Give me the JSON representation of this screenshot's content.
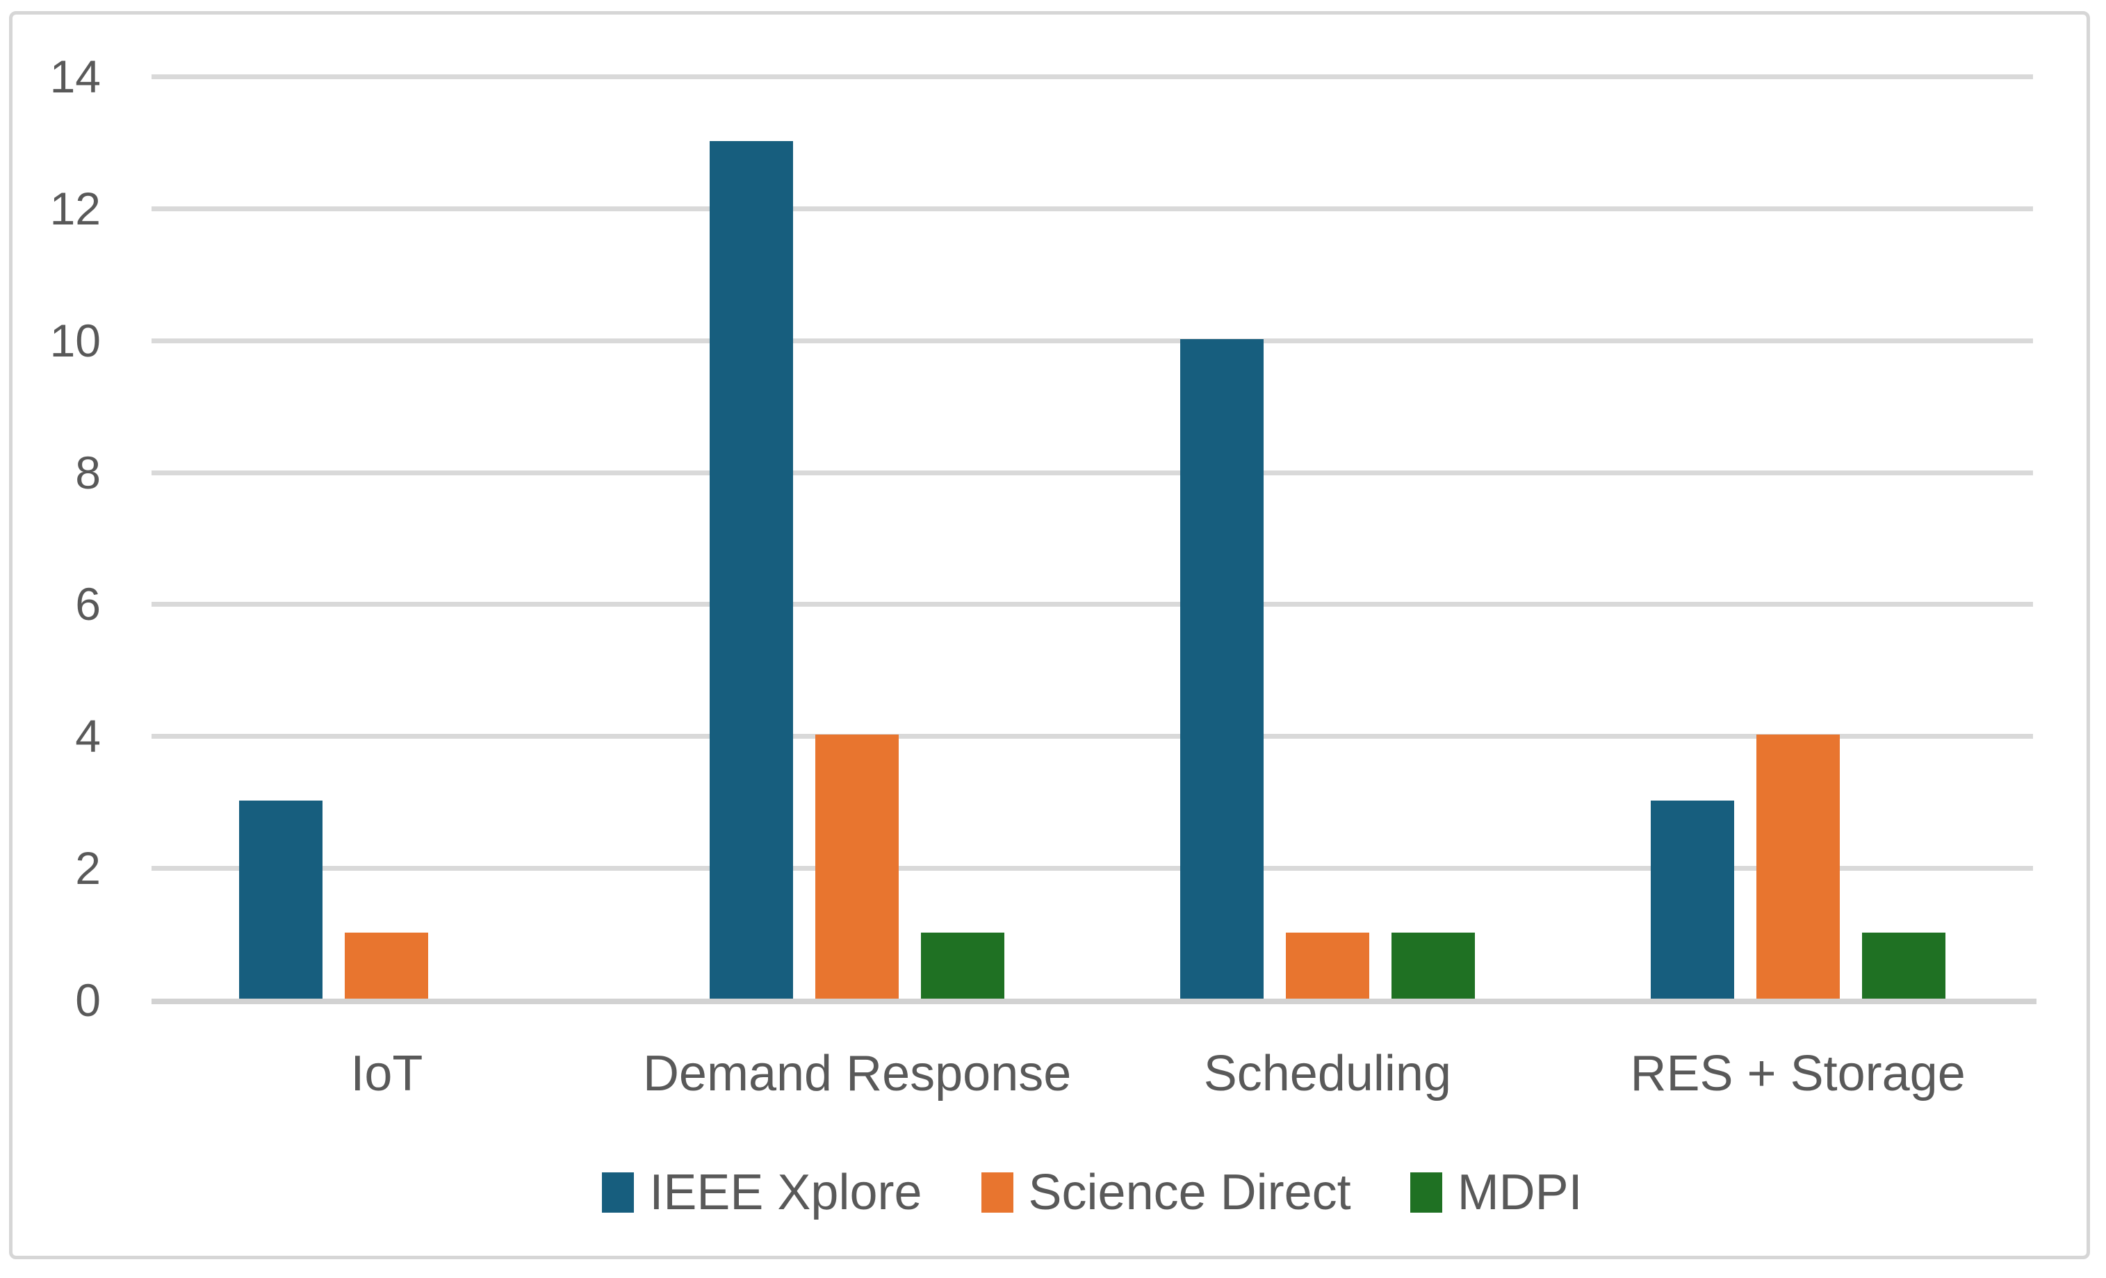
{
  "chart_data": {
    "type": "bar",
    "title": "",
    "xlabel": "",
    "ylabel": "",
    "categories": [
      "IoT",
      "Demand Response",
      "Scheduling",
      "RES + Storage"
    ],
    "series": [
      {
        "name": "IEEE Xplore",
        "color": "#175E7E",
        "values": [
          3,
          13,
          10,
          3
        ]
      },
      {
        "name": "Science Direct",
        "color": "#E8752F",
        "values": [
          1,
          4,
          1,
          4
        ]
      },
      {
        "name": "MDPI",
        "color": "#1F7123",
        "values": [
          0,
          1,
          1,
          1
        ]
      }
    ],
    "ylim": [
      0,
      14
    ],
    "yticks": [
      0,
      2,
      4,
      6,
      8,
      10,
      12,
      14
    ],
    "grid": true,
    "legend_position": "bottom-center"
  },
  "styles": {
    "text_color": "#595959",
    "gridline_color": "#D9D9D9",
    "axis_line_color": "#D2D2D2",
    "frame_border_color": "#D6D6D6",
    "background_color": "#FFFFFF"
  }
}
